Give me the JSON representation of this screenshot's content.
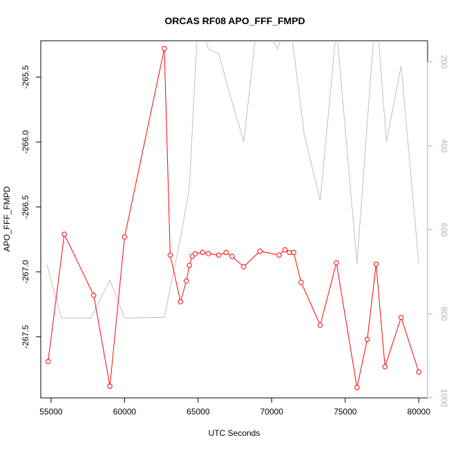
{
  "chart_data": {
    "type": "line",
    "title": "ORCAS RF08 APO_FFF_FMPD",
    "xlabel": "UTC Seconds",
    "ylabel": "APO_FFF_FMPD",
    "xlim": [
      54300,
      80600
    ],
    "ylim": [
      -267.97,
      -265.22
    ],
    "xticks": [
      55000,
      60000,
      65000,
      70000,
      75000,
      80000
    ],
    "xtick_labels": [
      "55000",
      "60000",
      "65000",
      "70000",
      "75000",
      "80000"
    ],
    "yticks": [
      -267.5,
      -267.0,
      -266.5,
      -266.0,
      -265.5
    ],
    "ytick_labels": [
      "-267.5",
      "-267.0",
      "-266.5",
      "-266.0",
      "-265.5"
    ],
    "y2lim": [
      1000,
      150
    ],
    "y2ticks": [
      200,
      400,
      600,
      800,
      1000
    ],
    "y2tick_labels": [
      "200",
      "400",
      "600",
      "800",
      "1000"
    ],
    "grid": false,
    "series": [
      {
        "color": "#ff0000",
        "axis": "left",
        "markers": true,
        "x": [
          54800,
          55900,
          57900,
          59000,
          60000,
          62700,
          63100,
          63800,
          64200,
          64400,
          64600,
          64800,
          65300,
          65700,
          66400,
          66900,
          67300,
          68100,
          69200,
          70500,
          70900,
          71200,
          71500,
          72000,
          73300,
          74400,
          75800,
          76500,
          77100,
          77700,
          78800,
          80000
        ],
        "y": [
          -267.69,
          -266.71,
          -267.18,
          -267.88,
          -266.73,
          -265.28,
          -266.87,
          -267.23,
          -267.07,
          -266.95,
          -266.88,
          -266.86,
          -266.85,
          -266.86,
          -266.87,
          -266.85,
          -266.88,
          -266.96,
          -266.84,
          -266.87,
          -266.83,
          -266.85,
          -266.85,
          -267.08,
          -267.41,
          -266.93,
          -267.89,
          -267.52,
          -266.94,
          -267.73,
          -267.35,
          -267.77
        ]
      },
      {
        "color": "#bebebe",
        "axis": "right",
        "markers": false,
        "x": [
          54700,
          55700,
          57700,
          59000,
          60000,
          62700,
          63800,
          64400,
          65000,
          65700,
          66400,
          67100,
          68100,
          69100,
          70400,
          71200,
          72200,
          73300,
          74400,
          75800,
          76700,
          77100,
          77800,
          78800,
          80000
        ],
        "y": [
          680,
          810,
          810,
          720,
          810,
          808,
          620,
          500,
          90,
          170,
          180,
          270,
          390,
          80,
          170,
          90,
          370,
          530,
          120,
          680,
          250,
          70,
          390,
          210,
          680
        ]
      }
    ]
  }
}
